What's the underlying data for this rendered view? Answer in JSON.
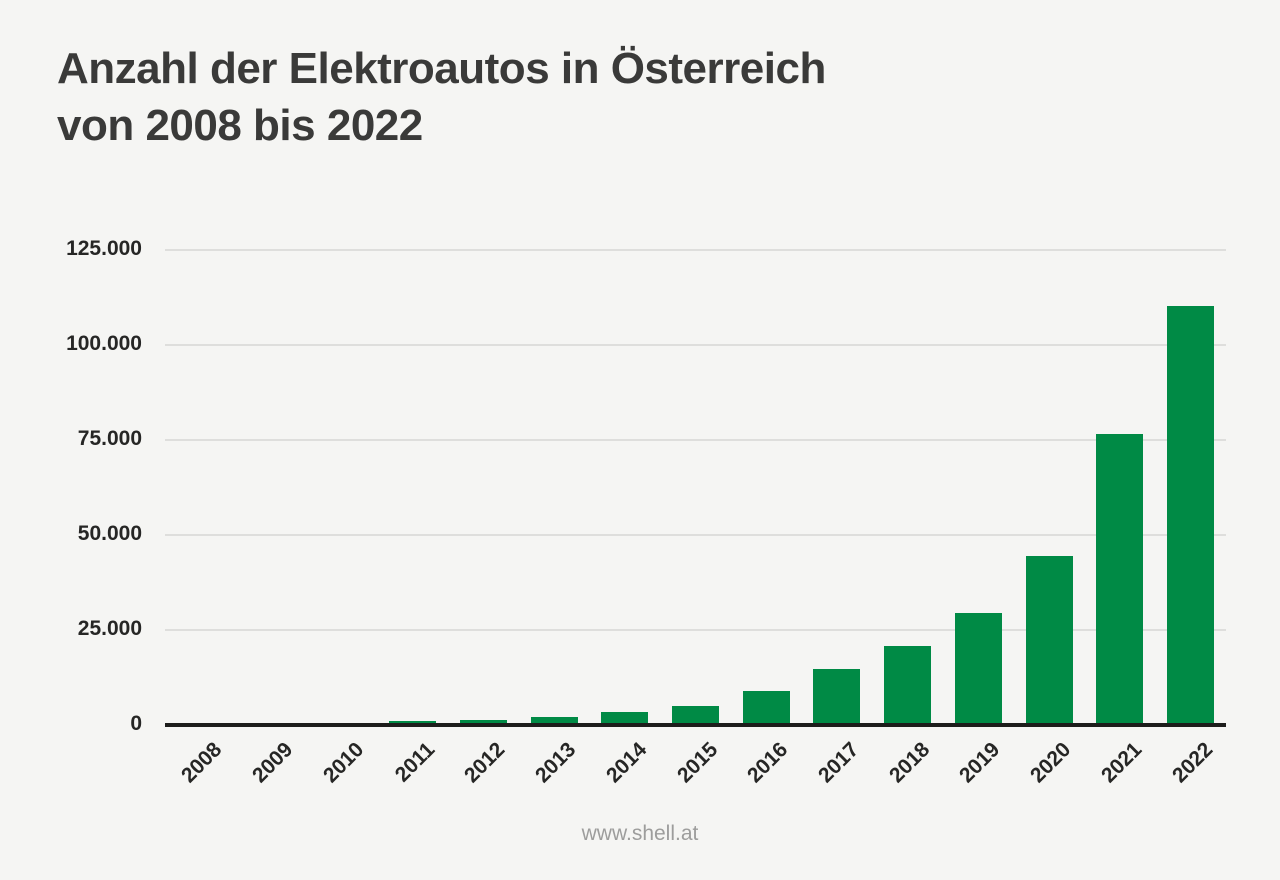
{
  "title": {
    "line1": "Anzahl der Elektroautos in Österreich",
    "line2": "von 2008 bis 2022"
  },
  "footer": {
    "url": "www.shell.at"
  },
  "colors": {
    "background": "#F5F5F3",
    "bar": "#008A45",
    "title_text": "#3A3A39",
    "tick_text": "#262625",
    "gridline": "#DEDEDC",
    "axis": "#1D1D1B",
    "footer_text": "#9D9D9C"
  },
  "chart_data": {
    "type": "bar",
    "title": "Anzahl der Elektroautos in Österreich von 2008 bis 2022",
    "xlabel": "",
    "ylabel": "",
    "categories": [
      "2008",
      "2009",
      "2010",
      "2011",
      "2012",
      "2013",
      "2014",
      "2015",
      "2016",
      "2017",
      "2018",
      "2019",
      "2020",
      "2021",
      "2022"
    ],
    "values": [
      146,
      223,
      353,
      989,
      1389,
      2070,
      3386,
      5032,
      9073,
      14618,
      20831,
      29523,
      44507,
      76540,
      110372
    ],
    "ylim": [
      0,
      125000
    ],
    "yticks": [
      {
        "value": 0,
        "label": "0"
      },
      {
        "value": 25000,
        "label": "25.000"
      },
      {
        "value": 50000,
        "label": "50.000"
      },
      {
        "value": 75000,
        "label": "75.000"
      },
      {
        "value": 100000,
        "label": "100.000"
      },
      {
        "value": 125000,
        "label": "125.000"
      }
    ],
    "grid": true,
    "legend": false,
    "bar_color": "#008A45"
  }
}
